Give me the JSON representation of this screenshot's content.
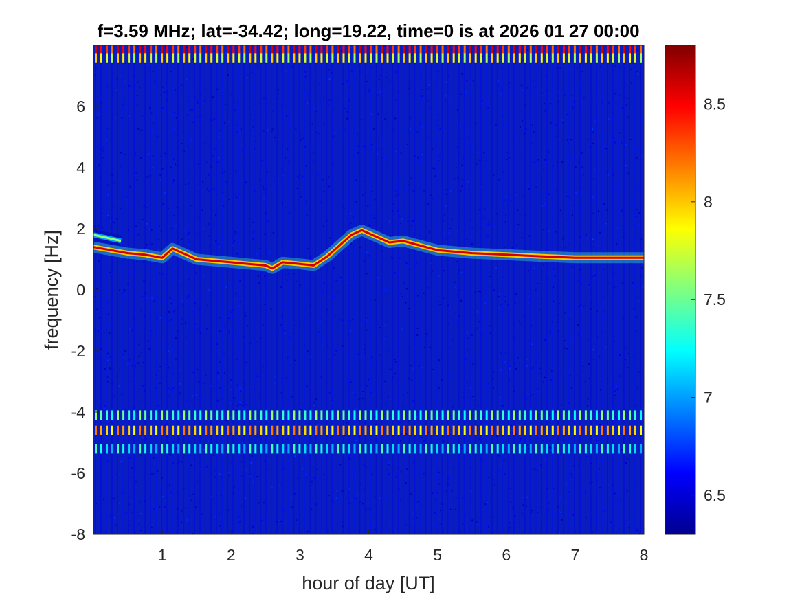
{
  "chart_data": {
    "type": "heatmap",
    "title": "f=3.59 MHz;  lat=-34.42; long=19.22, time=0 is at 2026 01 27 00:00",
    "xlabel": "hour of day [UT]",
    "ylabel": "frequency [Hz]",
    "xlim": [
      0,
      8
    ],
    "ylim": [
      -8,
      8
    ],
    "x_ticks": [
      1,
      2,
      3,
      4,
      5,
      6,
      7,
      8
    ],
    "x_tick_labels": [
      "1",
      "2",
      "3",
      "4",
      "5",
      "6",
      "7",
      "8"
    ],
    "y_ticks": [
      -8,
      -6,
      -4,
      -2,
      0,
      2,
      4,
      6
    ],
    "y_tick_labels": [
      "-8",
      "-6",
      "-4",
      "-2",
      "0",
      "2",
      "4",
      "6"
    ],
    "colormap": "jet",
    "colorbar": {
      "limits": [
        6.3,
        8.8
      ],
      "ticks": [
        6.5,
        7,
        7.5,
        8,
        8.5
      ],
      "tick_labels": [
        "6.5",
        "7",
        "7.5",
        "8",
        "8.5"
      ]
    },
    "background_level": 6.4,
    "doppler_trace": {
      "x": [
        0.0,
        0.25,
        0.5,
        0.75,
        1.0,
        1.15,
        1.3,
        1.5,
        1.75,
        2.0,
        2.25,
        2.5,
        2.6,
        2.75,
        3.0,
        3.2,
        3.4,
        3.6,
        3.75,
        3.9,
        4.1,
        4.3,
        4.5,
        4.75,
        5.0,
        5.5,
        6.0,
        6.5,
        7.0,
        7.5,
        8.0
      ],
      "y": [
        1.4,
        1.3,
        1.2,
        1.15,
        1.05,
        1.35,
        1.2,
        1.0,
        0.95,
        0.9,
        0.85,
        0.8,
        0.7,
        0.9,
        0.85,
        0.8,
        1.1,
        1.5,
        1.8,
        1.95,
        1.75,
        1.55,
        1.6,
        1.45,
        1.3,
        1.2,
        1.15,
        1.1,
        1.05,
        1.05,
        1.05
      ],
      "level": 8.6
    },
    "upper_trace": {
      "x": [
        0.0,
        0.2,
        0.4
      ],
      "y": [
        1.8,
        1.7,
        1.6
      ],
      "level": 7.6
    },
    "bands": [
      {
        "y": 7.6,
        "level": 8.0
      },
      {
        "y": 7.9,
        "level": 8.6
      },
      {
        "y": -4.6,
        "level": 8.2
      },
      {
        "y": -4.1,
        "level": 7.6
      },
      {
        "y": -5.2,
        "level": 7.4
      }
    ]
  }
}
